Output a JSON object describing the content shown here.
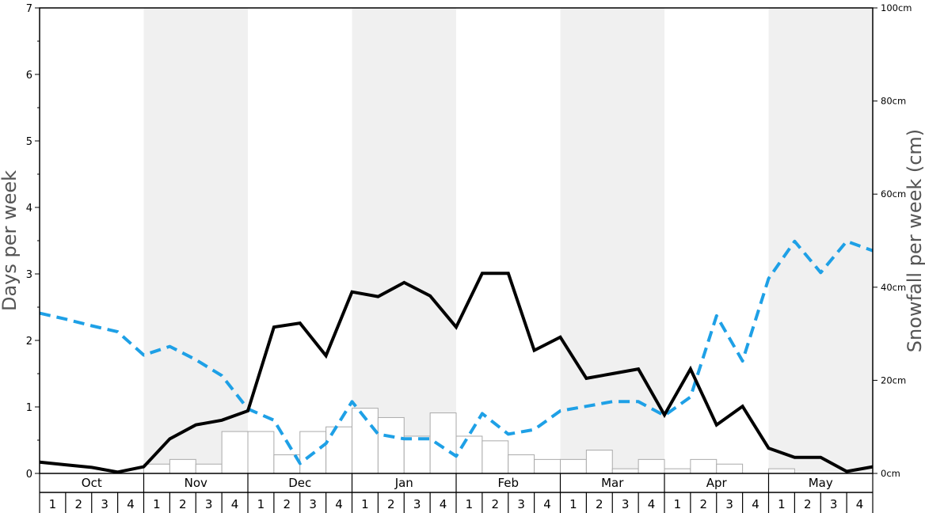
{
  "chart_data": {
    "type": "bar+line",
    "left_axis": {
      "label": "Days per week",
      "ylim": [
        0,
        7
      ],
      "ticks": [
        "0",
        "1",
        "2",
        "3",
        "4",
        "5",
        "6",
        "7"
      ]
    },
    "right_axis": {
      "label": "Snowfall per week (cm)",
      "ylim": [
        0,
        100
      ],
      "ticks": [
        "0cm",
        "20cm",
        "40cm",
        "60cm",
        "80cm",
        "100cm"
      ]
    },
    "months": [
      "Oct",
      "Nov",
      "Dec",
      "Jan",
      "Feb",
      "Mar",
      "Apr",
      "May"
    ],
    "weeks": [
      "1",
      "2",
      "3",
      "4"
    ],
    "snowfall_bars_cm": [
      0,
      0,
      0,
      0,
      2,
      3,
      2,
      9,
      9,
      4,
      9,
      10,
      14,
      12,
      8,
      13,
      8,
      7,
      4,
      3,
      3,
      5,
      1,
      3,
      1,
      3,
      2,
      0,
      1,
      0,
      0
    ],
    "solid_series_days": [
      0.17,
      0.13,
      0.09,
      0.02,
      0.1,
      0.52,
      0.73,
      0.8,
      0.94,
      2.2,
      2.26,
      1.77,
      2.73,
      2.66,
      2.87,
      2.67,
      2.2,
      3.01,
      3.01,
      1.85,
      2.05,
      1.43,
      1.5,
      1.57,
      0.88,
      1.57,
      0.73,
      1.01,
      0.38,
      0.24,
      0.24,
      0.03,
      0.1
    ],
    "dashed_series_days": [
      2.41,
      2.32,
      2.22,
      2.13,
      1.78,
      1.91,
      1.71,
      1.47,
      0.97,
      0.8,
      0.15,
      0.45,
      1.08,
      0.59,
      0.52,
      0.52,
      0.26,
      0.9,
      0.59,
      0.66,
      0.94,
      1.01,
      1.08,
      1.08,
      0.87,
      1.15,
      2.37,
      1.69,
      2.93,
      3.49,
      3.02,
      3.49,
      3.35
    ],
    "colors": {
      "solid_line": "#000000",
      "dashed_line": "#1ea0e6",
      "bar_fill": "#ffffff",
      "bar_stroke": "#aaaaaa",
      "shade": "#f0f0f0",
      "axis_title": "#555555"
    },
    "shaded_months": [
      "Nov",
      "Jan",
      "Mar",
      "May"
    ]
  }
}
